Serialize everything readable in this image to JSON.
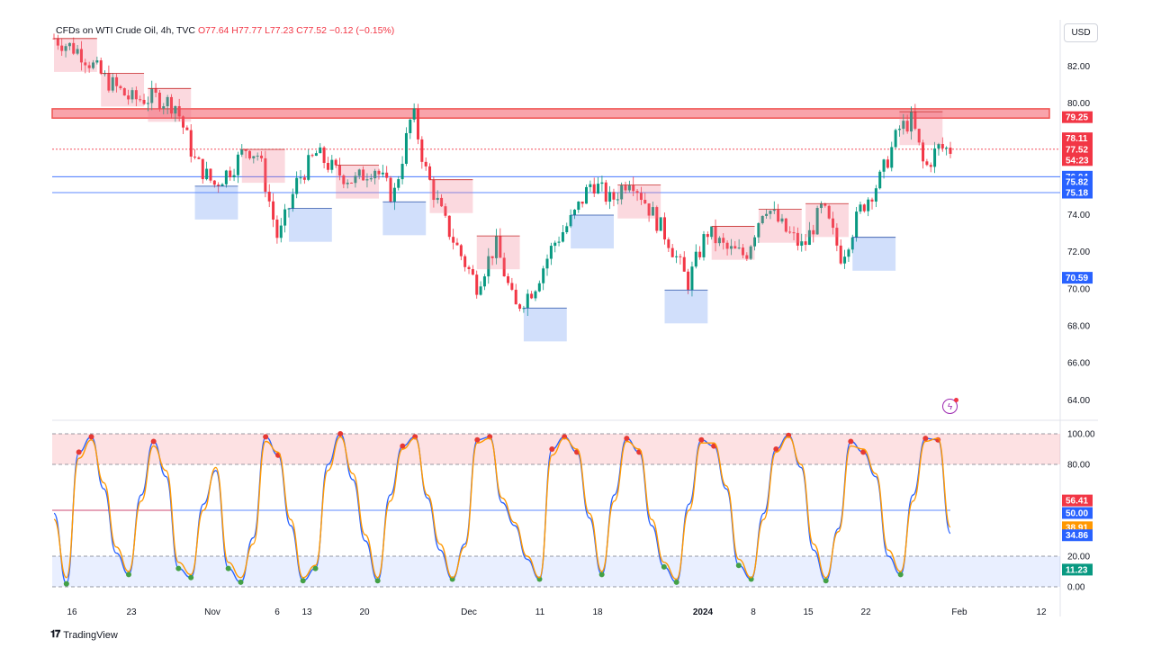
{
  "legend": {
    "symbol": "CFDs on WTI Crude Oil, 4h, TVC",
    "ohlc": "O77.64 H77.77 L77.23 C77.52 −0.12 (−0.15%)"
  },
  "currency": "USD",
  "brand": "TradingView",
  "colors": {
    "up": "#089981",
    "down": "#f23645",
    "resistance": "#ef5350",
    "support_line": "#2962ff",
    "zone_red": "#f8bbd0",
    "zone_blue": "#c5d8fb",
    "stoch_k": "#2962ff",
    "stoch_d": "#ff9800"
  },
  "chart_data": [
    {
      "type": "candlestick",
      "title": "CFDs on WTI Crude Oil, 4h",
      "x_tick_labels": [
        "16",
        "23",
        "Nov",
        "6",
        "13",
        "20",
        "Dec",
        "11",
        "18",
        "2024",
        "8",
        "15",
        "22",
        "Feb",
        "12"
      ],
      "y_tick_labels": [
        "82.00",
        "80.00",
        "78.00",
        "76.00",
        "74.00",
        "72.00",
        "70.00",
        "68.00",
        "66.00",
        "64.00"
      ],
      "ylim": [
        63.0,
        84.5
      ],
      "price_badges": [
        {
          "text": "79.25",
          "color": "#f23645"
        },
        {
          "text": "78.11",
          "color": "#f23645"
        },
        {
          "text": "77.52",
          "color": "#f23645"
        },
        {
          "text": "54:23",
          "color": "#f23645"
        },
        {
          "text": "76.04",
          "color": "#2962ff"
        },
        {
          "text": "75.82",
          "color": "#2962ff"
        },
        {
          "text": "75.18",
          "color": "#2962ff"
        },
        {
          "text": "70.59",
          "color": "#2962ff"
        }
      ],
      "levels": {
        "resistance_zone": [
          79.2,
          79.7
        ],
        "support_1": 76.04,
        "support_2": 75.18,
        "current": 77.52
      },
      "close_path": [
        [
          0,
          83.5
        ],
        [
          4,
          82.8
        ],
        [
          8,
          81.3
        ],
        [
          12,
          80.2
        ],
        [
          16,
          80.3
        ],
        [
          19,
          79.9
        ],
        [
          22,
          76.9
        ],
        [
          25,
          75.6
        ],
        [
          28,
          76.6
        ],
        [
          30,
          77.6
        ],
        [
          32,
          77.2
        ],
        [
          35,
          72.6
        ],
        [
          38,
          75.8
        ],
        [
          41,
          77.3
        ],
        [
          44,
          76.3
        ],
        [
          47,
          75.8
        ],
        [
          50,
          76.6
        ],
        [
          53,
          74.9
        ],
        [
          56,
          79.6
        ],
        [
          58,
          76.4
        ],
        [
          61,
          73.6
        ],
        [
          64,
          71.5
        ],
        [
          66,
          70.2
        ],
        [
          69,
          72.4
        ],
        [
          72,
          68.9
        ],
        [
          75,
          70.1
        ],
        [
          78,
          72.4
        ],
        [
          81,
          73.8
        ],
        [
          84,
          75.8
        ],
        [
          87,
          74.7
        ],
        [
          90,
          76.1
        ],
        [
          93,
          74.3
        ],
        [
          96,
          72.6
        ],
        [
          99,
          70.3
        ],
        [
          102,
          73.1
        ],
        [
          105,
          72.1
        ],
        [
          108,
          71.8
        ],
        [
          111,
          74.6
        ],
        [
          114,
          73.2
        ],
        [
          117,
          72.2
        ],
        [
          120,
          74.4
        ],
        [
          123,
          71.7
        ],
        [
          126,
          74.3
        ],
        [
          129,
          75.9
        ],
        [
          132,
          78.6
        ],
        [
          134,
          79.1
        ],
        [
          136,
          76.4
        ],
        [
          138,
          77.6
        ],
        [
          140,
          77.5
        ]
      ]
    },
    {
      "type": "line",
      "title": "Stochastic",
      "y_tick_labels": [
        "100.00",
        "80.00",
        "20.00",
        "0.00"
      ],
      "ylim": [
        0,
        100
      ],
      "bands": {
        "upper": [
          80,
          100
        ],
        "lower": [
          0,
          20
        ],
        "mid": 50
      },
      "value_badges": [
        {
          "text": "56.41",
          "color": "#f23645"
        },
        {
          "text": "50.00",
          "color": "#2962ff"
        },
        {
          "text": "38.91",
          "color": "#ff9800"
        },
        {
          "text": "34.86",
          "color": "#2962ff"
        },
        {
          "text": "11.23",
          "color": "#089981"
        }
      ],
      "series": [
        {
          "values": [
            48,
            2,
            88,
            98,
            64,
            22,
            8,
            60,
            95,
            72,
            12,
            6,
            54,
            76,
            12,
            3,
            32,
            98,
            86,
            40,
            4,
            12,
            80,
            100,
            70,
            30,
            4,
            60,
            92,
            98,
            58,
            24,
            5,
            28,
            96,
            98,
            55,
            40,
            18,
            5,
            90,
            98,
            88,
            45,
            8,
            60,
            97,
            88,
            40,
            13,
            3,
            54,
            96,
            92,
            64,
            14,
            5,
            48,
            90,
            99,
            78,
            24,
            4,
            38,
            95,
            88,
            72,
            20,
            8,
            60,
            97,
            96,
            35
          ]
        },
        {
          "values": [
            44,
            6,
            84,
            96,
            68,
            26,
            10,
            56,
            92,
            76,
            16,
            8,
            50,
            78,
            16,
            6,
            28,
            95,
            88,
            44,
            6,
            14,
            76,
            98,
            74,
            34,
            6,
            56,
            90,
            97,
            60,
            28,
            6,
            26,
            94,
            97,
            58,
            42,
            20,
            6,
            86,
            97,
            90,
            48,
            10,
            56,
            95,
            90,
            44,
            16,
            5,
            50,
            94,
            94,
            66,
            18,
            6,
            44,
            88,
            98,
            80,
            28,
            6,
            36,
            92,
            90,
            74,
            24,
            10,
            56,
            95,
            97,
            39
          ]
        }
      ]
    }
  ]
}
